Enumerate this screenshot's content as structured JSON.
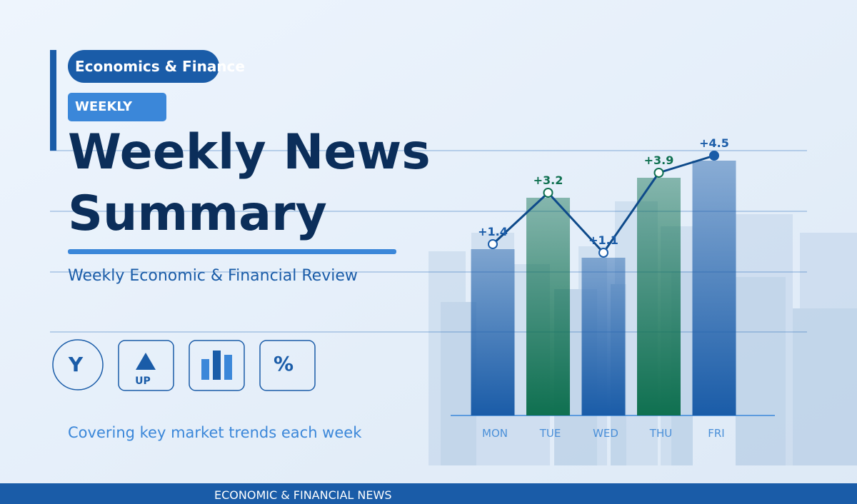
{
  "badge": "Economics & Finance",
  "tag": "WEEKLY",
  "title_lines": [
    "Weekly News",
    "Summary"
  ],
  "subtitle": "Weekly Economic & Financial Review",
  "icons": [
    "Y",
    "UP",
    "%"
  ],
  "tagline": "Covering key market trends each week",
  "footer": "ECONOMIC & FINANCIAL NEWS",
  "chart": {
    "categories": [
      "MON",
      "TUE",
      "WED",
      "THU",
      "FRI"
    ],
    "values": [
      1.4,
      3.2,
      1.1,
      3.9,
      4.5
    ],
    "value_labels": [
      "+1.4",
      "+3.2",
      "+1.1",
      "+3.9",
      "+4.5"
    ],
    "colors": [
      "#1a5ca8",
      "#0f7050",
      "#1a5ca8",
      "#0f7050",
      "#1a5ca8"
    ]
  }
}
